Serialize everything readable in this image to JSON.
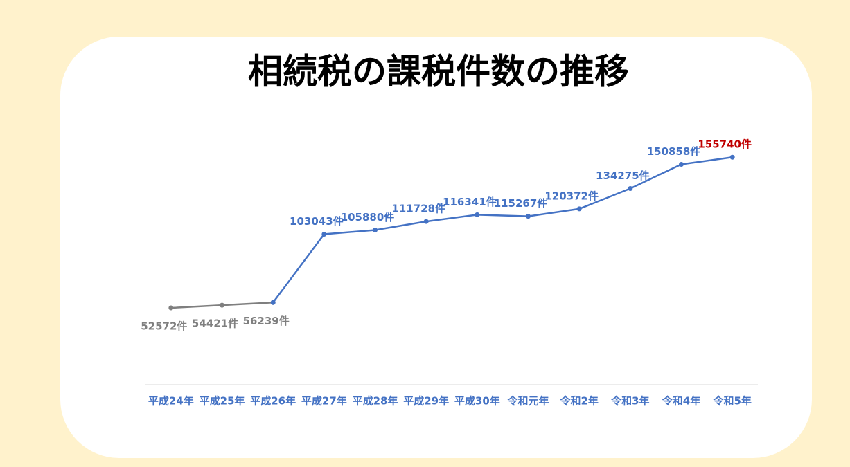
{
  "chart_data": {
    "type": "line",
    "title": "相続税の課税件数の推移",
    "categories": [
      "平成24年",
      "平成25年",
      "平成26年",
      "平成27年",
      "平成28年",
      "平成29年",
      "平成30年",
      "令和元年",
      "令和2年",
      "令和3年",
      "令和4年",
      "令和5年"
    ],
    "series": [
      {
        "name": null,
        "color": "#7f7f7f",
        "label_position": "below",
        "values": [
          52572,
          54421,
          56239,
          null,
          null,
          null,
          null,
          null,
          null,
          null,
          null,
          null
        ],
        "value_labels": [
          "52572件",
          "54421件",
          "56239件",
          null,
          null,
          null,
          null,
          null,
          null,
          null,
          null,
          null
        ]
      },
      {
        "name": null,
        "color": "#4472c4",
        "label_position": "above",
        "values": [
          null,
          null,
          56239,
          103043,
          105880,
          111728,
          116341,
          115267,
          120372,
          134275,
          150858,
          155740
        ],
        "value_labels": [
          null,
          null,
          null,
          "103043件",
          "105880件",
          "111728件",
          "116341件",
          "115267件",
          "120372件",
          "134275件",
          "150858件",
          "155740件"
        ]
      }
    ],
    "highlight": {
      "index": 11,
      "color": "#c00000"
    },
    "category_color": "#4472c4",
    "ylim": [
      0,
      180000
    ],
    "grid": false,
    "legend": false
  }
}
